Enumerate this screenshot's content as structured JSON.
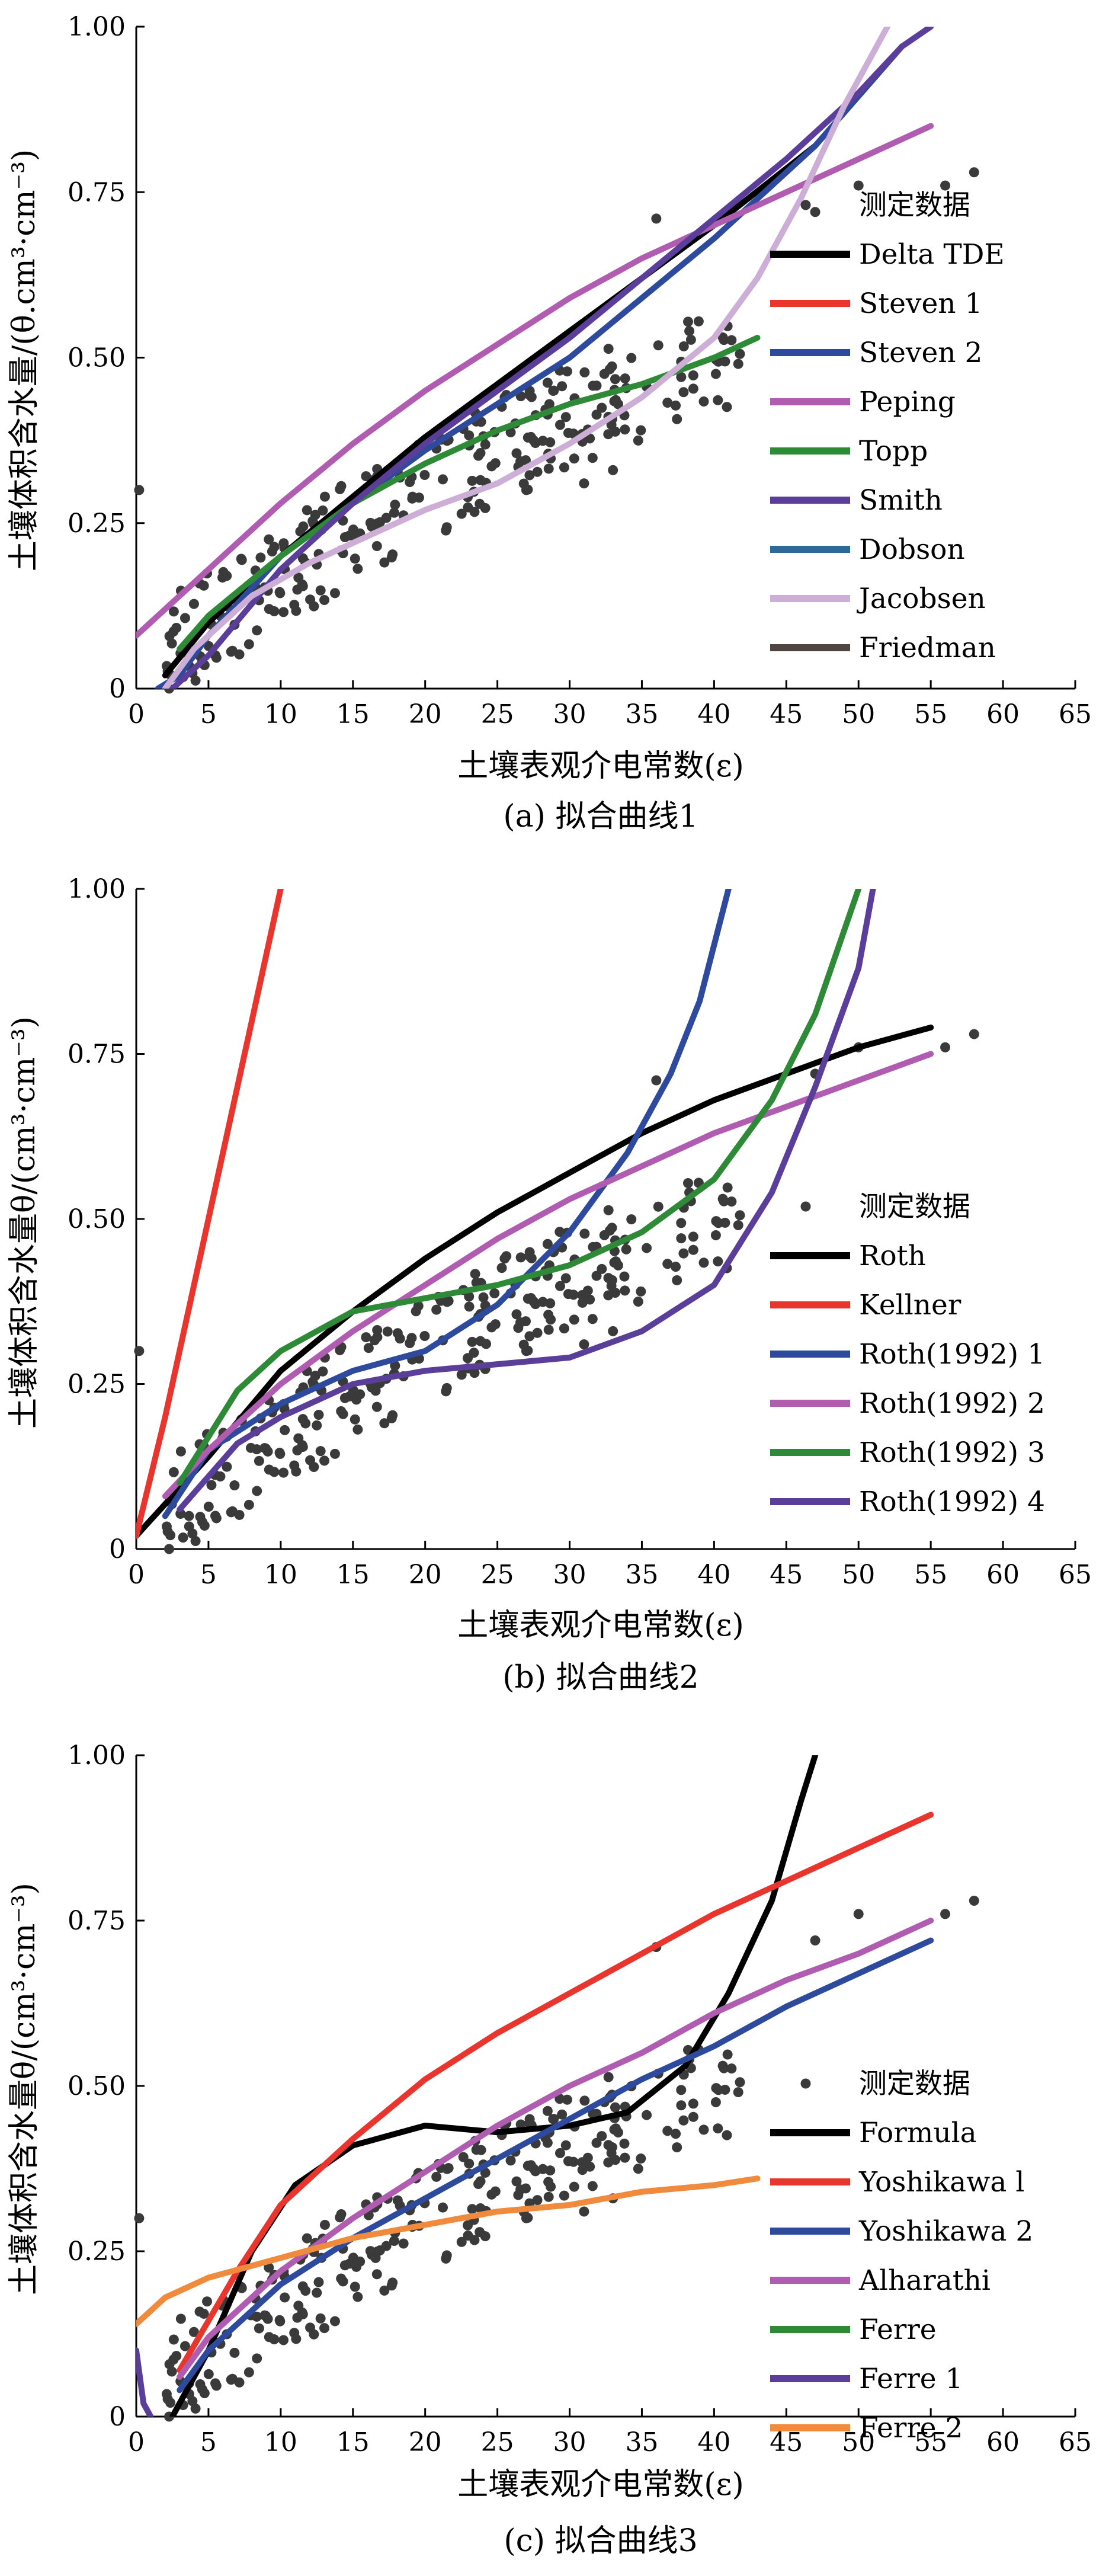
{
  "chart_data": [
    {
      "type": "scatter+line",
      "caption": "(a) 拟合曲线1",
      "xlabel": "土壤表观介电常数(ε)",
      "ylabel": "土壤体积含水量/(θ.cm³·cm⁻³)",
      "xlim": [
        0,
        65
      ],
      "ylim": [
        0,
        1.0
      ],
      "xticks": [
        0,
        5,
        10,
        15,
        20,
        25,
        30,
        35,
        40,
        45,
        50,
        55,
        60,
        65
      ],
      "yticks": [
        {
          "v": 0,
          "label": "0"
        },
        {
          "v": 0.25,
          "label": "0.25"
        },
        {
          "v": 0.5,
          "label": "0.50"
        },
        {
          "v": 0.75,
          "label": "0.75"
        },
        {
          "v": 1.0,
          "label": "1.00"
        }
      ],
      "legend_position": "right",
      "legend_scatter": "测定数据",
      "scatter_color": "#3a3a3a",
      "series": [
        {
          "name": "Delta TDE",
          "color": "#000000",
          "points": [
            [
              2,
              0.02
            ],
            [
              5,
              0.1
            ],
            [
              10,
              0.2
            ],
            [
              20,
              0.38
            ],
            [
              30,
              0.54
            ],
            [
              40,
              0.7
            ],
            [
              47,
              0.82
            ]
          ]
        },
        {
          "name": "Steven 1",
          "color": "#e8352e",
          "points": []
        },
        {
          "name": "Steven 2",
          "color": "#2e4a9c",
          "points": [
            [
              1.5,
              0
            ],
            [
              3,
              0.02
            ],
            [
              5,
              0.08
            ],
            [
              10,
              0.2
            ],
            [
              20,
              0.36
            ],
            [
              30,
              0.5
            ],
            [
              40,
              0.68
            ],
            [
              47,
              0.82
            ],
            [
              53,
              0.97
            ]
          ]
        },
        {
          "name": "Peping",
          "color": "#b05cb0",
          "points": [
            [
              0,
              0.08
            ],
            [
              5,
              0.18
            ],
            [
              10,
              0.28
            ],
            [
              15,
              0.37
            ],
            [
              20,
              0.45
            ],
            [
              25,
              0.52
            ],
            [
              30,
              0.59
            ],
            [
              35,
              0.65
            ],
            [
              40,
              0.7
            ],
            [
              45,
              0.75
            ],
            [
              50,
              0.8
            ],
            [
              55,
              0.85
            ]
          ]
        },
        {
          "name": "Topp",
          "color": "#2f8a38",
          "points": [
            [
              3,
              0.06
            ],
            [
              5,
              0.11
            ],
            [
              10,
              0.2
            ],
            [
              15,
              0.28
            ],
            [
              20,
              0.34
            ],
            [
              25,
              0.39
            ],
            [
              30,
              0.43
            ],
            [
              35,
              0.46
            ],
            [
              40,
              0.5
            ],
            [
              43,
              0.53
            ]
          ]
        },
        {
          "name": "Smith",
          "color": "#5a3e9a",
          "points": [
            [
              2.5,
              0
            ],
            [
              5,
              0.05
            ],
            [
              10,
              0.18
            ],
            [
              15,
              0.28
            ],
            [
              20,
              0.37
            ],
            [
              25,
              0.45
            ],
            [
              30,
              0.53
            ],
            [
              35,
              0.62
            ],
            [
              40,
              0.71
            ],
            [
              45,
              0.8
            ],
            [
              50,
              0.9
            ],
            [
              53,
              0.97
            ],
            [
              55,
              1.0
            ]
          ]
        },
        {
          "name": "Dobson",
          "color": "#2d6a9a",
          "points": []
        },
        {
          "name": "Jacobsen",
          "color": "#cdaed6",
          "points": [
            [
              2,
              0
            ],
            [
              4,
              0.06
            ],
            [
              8,
              0.14
            ],
            [
              12,
              0.19
            ],
            [
              16,
              0.23
            ],
            [
              20,
              0.27
            ],
            [
              25,
              0.31
            ],
            [
              30,
              0.37
            ],
            [
              35,
              0.44
            ],
            [
              40,
              0.53
            ],
            [
              43,
              0.62
            ],
            [
              46,
              0.74
            ],
            [
              49,
              0.88
            ],
            [
              52,
              1.0
            ]
          ]
        },
        {
          "name": "Friedman",
          "color": "#504540",
          "points": []
        }
      ]
    },
    {
      "type": "scatter+line",
      "caption": "(b) 拟合曲线2",
      "xlabel": "土壤表观介电常数(ε)",
      "ylabel": "土壤体积含水量θ/(cm³·cm⁻³)",
      "xlim": [
        0,
        65
      ],
      "ylim": [
        0,
        1.0
      ],
      "xticks": [
        0,
        5,
        10,
        15,
        20,
        25,
        30,
        35,
        40,
        45,
        50,
        55,
        60,
        65
      ],
      "yticks": [
        {
          "v": 0,
          "label": "0"
        },
        {
          "v": 0.25,
          "label": "0.25"
        },
        {
          "v": 0.5,
          "label": "0.50"
        },
        {
          "v": 0.75,
          "label": "0.75"
        },
        {
          "v": 1.0,
          "label": "1.00"
        }
      ],
      "legend_position": "right",
      "legend_scatter": "测定数据",
      "scatter_color": "#3a3a3a",
      "series": [
        {
          "name": "Roth",
          "color": "#000000",
          "points": [
            [
              0,
              0.02
            ],
            [
              5,
              0.14
            ],
            [
              10,
              0.27
            ],
            [
              15,
              0.36
            ],
            [
              20,
              0.44
            ],
            [
              25,
              0.51
            ],
            [
              30,
              0.57
            ],
            [
              35,
              0.63
            ],
            [
              40,
              0.68
            ],
            [
              45,
              0.72
            ],
            [
              50,
              0.76
            ],
            [
              55,
              0.79
            ]
          ]
        },
        {
          "name": "Kellner",
          "color": "#e8352e",
          "points": [
            [
              0,
              0.02
            ],
            [
              2,
              0.2
            ],
            [
              5,
              0.5
            ],
            [
              8,
              0.8
            ],
            [
              10,
              1.0
            ]
          ]
        },
        {
          "name": "Roth(1992) 1",
          "color": "#2e4a9c",
          "points": [
            [
              2,
              0.05
            ],
            [
              5,
              0.15
            ],
            [
              10,
              0.22
            ],
            [
              15,
              0.27
            ],
            [
              20,
              0.3
            ],
            [
              25,
              0.37
            ],
            [
              30,
              0.48
            ],
            [
              34,
              0.6
            ],
            [
              37,
              0.72
            ],
            [
              39,
              0.83
            ],
            [
              41,
              1.0
            ]
          ]
        },
        {
          "name": "Roth(1992) 2",
          "color": "#b05cb0",
          "points": [
            [
              2,
              0.08
            ],
            [
              5,
              0.15
            ],
            [
              10,
              0.25
            ],
            [
              15,
              0.33
            ],
            [
              20,
              0.4
            ],
            [
              25,
              0.47
            ],
            [
              30,
              0.53
            ],
            [
              35,
              0.58
            ],
            [
              40,
              0.63
            ],
            [
              45,
              0.67
            ],
            [
              50,
              0.71
            ],
            [
              55,
              0.75
            ]
          ]
        },
        {
          "name": "Roth(1992) 3",
          "color": "#2f8a38",
          "points": [
            [
              3,
              0.1
            ],
            [
              7,
              0.24
            ],
            [
              10,
              0.3
            ],
            [
              15,
              0.36
            ],
            [
              20,
              0.38
            ],
            [
              25,
              0.4
            ],
            [
              30,
              0.43
            ],
            [
              35,
              0.48
            ],
            [
              40,
              0.56
            ],
            [
              44,
              0.68
            ],
            [
              47,
              0.81
            ],
            [
              50,
              1.0
            ]
          ]
        },
        {
          "name": "Roth(1992) 4",
          "color": "#5a3e9a",
          "points": [
            [
              3,
              0.06
            ],
            [
              7,
              0.16
            ],
            [
              10,
              0.2
            ],
            [
              15,
              0.25
            ],
            [
              20,
              0.27
            ],
            [
              25,
              0.28
            ],
            [
              30,
              0.29
            ],
            [
              35,
              0.33
            ],
            [
              40,
              0.4
            ],
            [
              44,
              0.54
            ],
            [
              47,
              0.7
            ],
            [
              50,
              0.88
            ],
            [
              51,
              1.0
            ]
          ]
        }
      ]
    },
    {
      "type": "scatter+line",
      "caption": "(c) 拟合曲线3",
      "xlabel": "土壤表观介电常数(ε)",
      "ylabel": "土壤体积含水量θ/(cm³·cm⁻³)",
      "xlim": [
        0,
        65
      ],
      "ylim": [
        0,
        1.0
      ],
      "xticks": [
        0,
        5,
        10,
        15,
        20,
        25,
        30,
        35,
        40,
        45,
        50,
        55,
        60,
        65
      ],
      "yticks": [
        {
          "v": 0,
          "label": "0"
        },
        {
          "v": 0.25,
          "label": "0.25"
        },
        {
          "v": 0.5,
          "label": "0.50"
        },
        {
          "v": 0.75,
          "label": "0.75"
        },
        {
          "v": 1.0,
          "label": "1.00"
        }
      ],
      "legend_position": "right",
      "legend_scatter": "测定数据",
      "scatter_color": "#3a3a3a",
      "series": [
        {
          "name": "Formula",
          "color": "#000000",
          "points": [
            [
              2.5,
              0
            ],
            [
              5,
              0.1
            ],
            [
              8,
              0.25
            ],
            [
              11,
              0.35
            ],
            [
              15,
              0.41
            ],
            [
              20,
              0.44
            ],
            [
              25,
              0.43
            ],
            [
              30,
              0.44
            ],
            [
              34,
              0.46
            ],
            [
              38,
              0.53
            ],
            [
              41,
              0.64
            ],
            [
              44,
              0.78
            ],
            [
              46,
              0.93
            ],
            [
              47,
              1.0
            ]
          ]
        },
        {
          "name": "Yoshikawa l",
          "color": "#e8352e",
          "points": [
            [
              3,
              0.07
            ],
            [
              7,
              0.22
            ],
            [
              10,
              0.32
            ],
            [
              15,
              0.42
            ],
            [
              20,
              0.51
            ],
            [
              25,
              0.58
            ],
            [
              30,
              0.64
            ],
            [
              35,
              0.7
            ],
            [
              40,
              0.76
            ],
            [
              45,
              0.81
            ],
            [
              50,
              0.86
            ],
            [
              55,
              0.91
            ]
          ]
        },
        {
          "name": "Yoshikawa 2",
          "color": "#2e4a9c",
          "points": [
            [
              3,
              0.04
            ],
            [
              5,
              0.1
            ],
            [
              10,
              0.2
            ],
            [
              15,
              0.27
            ],
            [
              20,
              0.33
            ],
            [
              25,
              0.39
            ],
            [
              30,
              0.45
            ],
            [
              35,
              0.51
            ],
            [
              40,
              0.56
            ],
            [
              45,
              0.62
            ],
            [
              50,
              0.67
            ],
            [
              55,
              0.72
            ]
          ]
        },
        {
          "name": "Alharathi",
          "color": "#b05cb0",
          "points": [
            [
              3,
              0.06
            ],
            [
              5,
              0.12
            ],
            [
              10,
              0.22
            ],
            [
              15,
              0.3
            ],
            [
              20,
              0.37
            ],
            [
              25,
              0.44
            ],
            [
              30,
              0.5
            ],
            [
              35,
              0.55
            ],
            [
              40,
              0.61
            ],
            [
              45,
              0.66
            ],
            [
              50,
              0.7
            ],
            [
              55,
              0.75
            ]
          ]
        },
        {
          "name": "Ferre",
          "color": "#2f8a38",
          "points": []
        },
        {
          "name": "Ferre 1",
          "color": "#5a3e9a",
          "points": [
            [
              0,
              0.1
            ],
            [
              0.5,
              0.02
            ],
            [
              1,
              0
            ]
          ]
        },
        {
          "name": "Ferre 2",
          "color": "#f08a3c",
          "points": [
            [
              0,
              0.14
            ],
            [
              2,
              0.18
            ],
            [
              5,
              0.21
            ],
            [
              10,
              0.24
            ],
            [
              15,
              0.27
            ],
            [
              20,
              0.29
            ],
            [
              25,
              0.31
            ],
            [
              30,
              0.32
            ],
            [
              35,
              0.34
            ],
            [
              40,
              0.35
            ],
            [
              43,
              0.36
            ]
          ]
        }
      ]
    }
  ]
}
